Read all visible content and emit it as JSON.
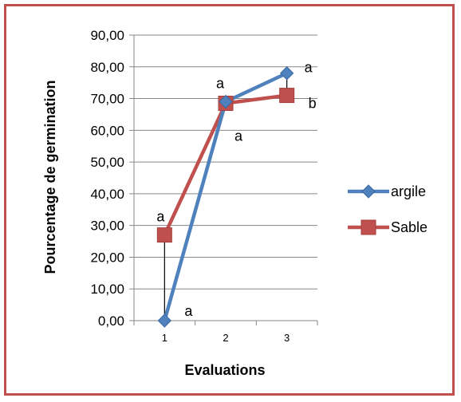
{
  "chart_data": {
    "type": "line",
    "categories": [
      "1",
      "2",
      "3"
    ],
    "xlabel": "Evaluations",
    "ylabel": "Pourcentage de germination",
    "ylim": [
      0,
      90
    ],
    "yticks": [
      "0,00",
      "10,00",
      "20,00",
      "30,00",
      "40,00",
      "50,00",
      "60,00",
      "70,00",
      "80,00",
      "90,00"
    ],
    "grid": true,
    "legend_position": "right",
    "series": [
      {
        "name": "argile",
        "values": [
          0,
          69,
          78
        ],
        "color": "#4f81bd",
        "marker": "diamond",
        "labels": [
          "a",
          "a",
          "a"
        ]
      },
      {
        "name": "Sable",
        "values": [
          27,
          68.5,
          71
        ],
        "color": "#c0504d",
        "marker": "square",
        "labels": [
          "a",
          "a",
          "b"
        ]
      }
    ]
  }
}
